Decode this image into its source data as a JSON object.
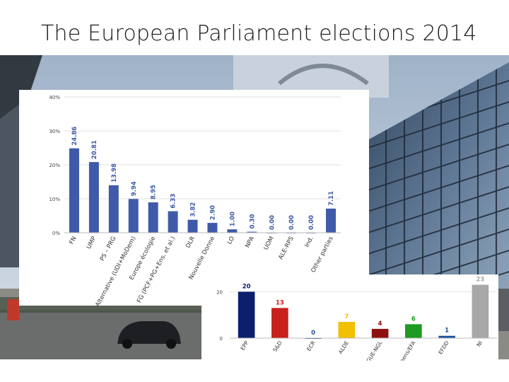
{
  "slide": {
    "title": "The European Parliament elections 2014"
  },
  "chart_data": [
    {
      "type": "bar",
      "categories": [
        "FN",
        "UMP",
        "PS – PRG",
        "Alternative (UDI+MoDem)",
        "Europe écologie",
        "FG (PCF+PG+Ens. et al.)",
        "DLR",
        "Nouvelle Donne",
        "LO",
        "NPA",
        "UOM",
        "ALE-RPS",
        "Ind.",
        "Other parties"
      ],
      "values": [
        24.86,
        20.81,
        13.98,
        9.94,
        8.95,
        6.33,
        3.82,
        2.9,
        1.0,
        0.3,
        0.0,
        0.0,
        0.0,
        7.11
      ],
      "value_labels": [
        "24.86",
        "20.81",
        "13.98",
        "9.94",
        "8.95",
        "6.33",
        "3.82",
        "2.90",
        "1.00",
        "0.30",
        "0.00",
        "0.00",
        "0.00",
        "7.11"
      ],
      "y_ticks": [
        "0%",
        "10%",
        "20%",
        "30%",
        "40%"
      ],
      "ylim": [
        0,
        40
      ],
      "grid": true,
      "bar_color": "#3f5aa8"
    },
    {
      "type": "bar",
      "categories": [
        "EPP",
        "S&D",
        "ECR",
        "ALDE",
        "GUE-NGL",
        "Greens/EFA",
        "EFDD",
        "NI"
      ],
      "values": [
        20,
        13,
        0,
        7,
        4,
        6,
        1,
        23
      ],
      "value_labels": [
        "20",
        "13",
        "0",
        "7",
        "4",
        "6",
        "1",
        "23"
      ],
      "colors": [
        "#0b1f6e",
        "#c8201b",
        "#2b4c9a",
        "#f2c000",
        "#8e1010",
        "#1f9a23",
        "#1d4f9c",
        "#a8a8a8"
      ],
      "y_ticks": [
        "0",
        "20"
      ],
      "ylim": [
        0,
        25
      ],
      "grid": true
    }
  ]
}
